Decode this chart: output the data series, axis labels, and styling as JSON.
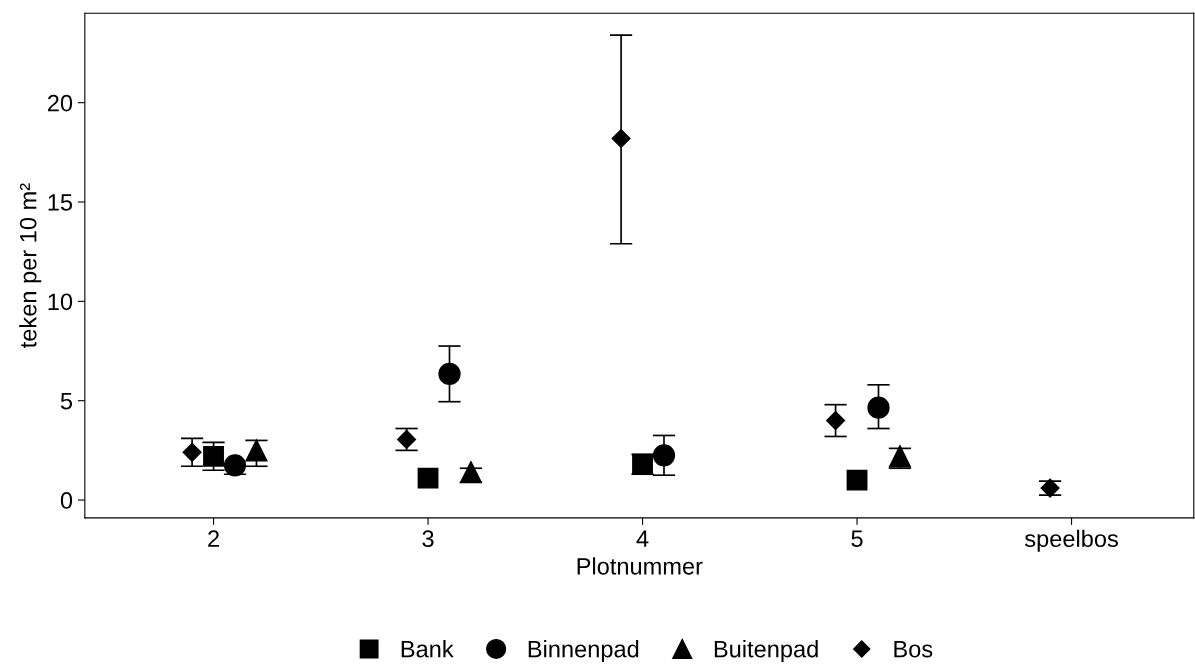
{
  "chart_data": {
    "type": "scatter",
    "xlabel": "Plotnummer",
    "ylabel": "teken per 10 m²",
    "categories": [
      "2",
      "3",
      "4",
      "5",
      "speelbos"
    ],
    "ylim": [
      -0.9,
      24.5
    ],
    "yticks": [
      0,
      5,
      10,
      15,
      20
    ],
    "grid": false,
    "legend": "bottom",
    "series": [
      {
        "name": "Bank",
        "color": "#000000",
        "marker": "square",
        "values": [
          2.2,
          1.1,
          1.8,
          1.0,
          null
        ],
        "errors": [
          [
            1.5,
            2.9
          ],
          null,
          [
            1.3,
            2.3
          ],
          null,
          null
        ]
      },
      {
        "name": "Binnenpad",
        "color": "#000000",
        "marker": "circle",
        "values": [
          1.75,
          6.35,
          2.25,
          4.65,
          null
        ],
        "errors": [
          [
            1.3,
            1.75
          ],
          [
            4.95,
            7.75
          ],
          [
            1.25,
            3.25
          ],
          [
            3.6,
            5.8
          ],
          null
        ]
      },
      {
        "name": "Buitenpad",
        "color": "#000000",
        "marker": "triangle",
        "values": [
          2.5,
          1.4,
          null,
          2.2,
          null
        ],
        "errors": [
          [
            1.7,
            3.0
          ],
          [
            0.9,
            1.6
          ],
          null,
          [
            1.6,
            2.6
          ],
          null
        ]
      },
      {
        "name": "Bos",
        "color": "#000000",
        "marker": "diamond",
        "values": [
          2.4,
          3.05,
          18.2,
          4.0,
          0.6
        ],
        "errors": [
          [
            1.7,
            3.1
          ],
          [
            2.5,
            3.6
          ],
          [
            12.9,
            23.4
          ],
          [
            3.2,
            4.8
          ],
          [
            0.25,
            0.95
          ]
        ]
      }
    ]
  }
}
